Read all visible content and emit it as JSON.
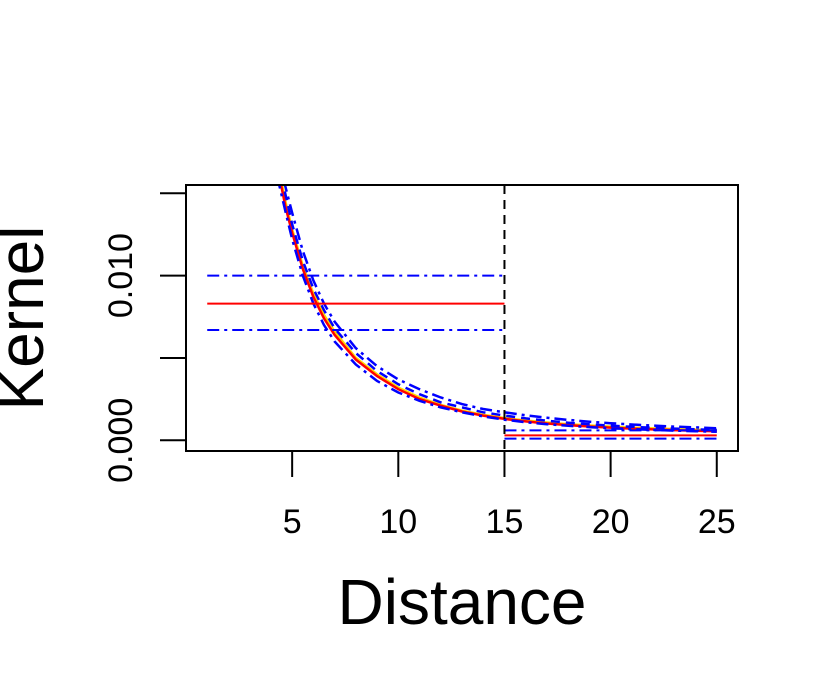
{
  "chart_data": {
    "type": "line",
    "xlabel": "Distance",
    "ylabel": "Kernel",
    "xlim": [
      0,
      26
    ],
    "ylim": [
      -0.00065,
      0.0155
    ],
    "x_ticks": [
      5,
      10,
      15,
      20,
      25
    ],
    "x_tick_labels": [
      "5",
      "10",
      "15",
      "20",
      "25"
    ],
    "y_ticks": [
      0.0,
      0.005,
      0.01,
      0.015
    ],
    "y_tick_labels": [
      "0.000",
      "",
      "0.010",
      ""
    ],
    "vertical_line": {
      "x": 15,
      "style": "dashed",
      "color": "#000000"
    },
    "series": [
      {
        "role": "estimate-curve",
        "color": "#ffd700",
        "style": "solid",
        "x": [
          4.4,
          4.7,
          5,
          5.5,
          6,
          6.5,
          7,
          8,
          9,
          10,
          11,
          12,
          13,
          14,
          15,
          16,
          17,
          18,
          19,
          20,
          21,
          22,
          23,
          24,
          25
        ],
        "y": [
          0.0163,
          0.0144,
          0.0128,
          0.0106,
          0.0089,
          0.0076,
          0.0066,
          0.005,
          0.004,
          0.0032,
          0.0026,
          0.00215,
          0.0018,
          0.00155,
          0.00135,
          0.0012,
          0.00108,
          0.00098,
          0.0009,
          0.00083,
          0.00077,
          0.00072,
          0.00068,
          0.00064,
          0.0006
        ]
      },
      {
        "role": "estimate-curve",
        "color": "#ff0000",
        "style": "solid",
        "x": [
          4.4,
          4.7,
          5,
          5.5,
          6,
          6.5,
          7,
          8,
          9,
          10,
          11,
          12,
          13,
          14,
          15,
          16,
          17,
          18,
          19,
          20,
          21,
          22,
          23,
          24,
          25
        ],
        "y": [
          0.016,
          0.0141,
          0.0126,
          0.0104,
          0.0087,
          0.0074,
          0.0064,
          0.0049,
          0.0039,
          0.0031,
          0.0025,
          0.0021,
          0.00175,
          0.0015,
          0.0013,
          0.00115,
          0.00102,
          0.00092,
          0.00084,
          0.00077,
          0.00071,
          0.00066,
          0.00062,
          0.00058,
          0.00055
        ]
      },
      {
        "role": "upper-band",
        "color": "#0000ff",
        "style": "dashdot",
        "x": [
          4.6,
          5,
          5.5,
          6,
          6.5,
          7,
          8,
          9,
          10,
          11,
          12,
          13,
          14,
          15,
          16,
          17,
          18,
          19,
          20,
          21,
          22,
          23,
          24,
          25
        ],
        "y": [
          0.0158,
          0.0138,
          0.0115,
          0.0097,
          0.0083,
          0.0072,
          0.0056,
          0.0045,
          0.0037,
          0.0031,
          0.0026,
          0.0022,
          0.0019,
          0.0017,
          0.00152,
          0.00137,
          0.00124,
          0.00113,
          0.00104,
          0.00096,
          0.00089,
          0.00083,
          0.00078,
          0.00073
        ]
      },
      {
        "role": "lower-band",
        "color": "#0000ff",
        "style": "dashdot",
        "x": [
          4.3,
          4.7,
          5,
          5.5,
          6,
          6.5,
          7,
          8,
          9,
          10,
          11,
          12,
          13,
          14,
          15,
          16,
          17,
          18,
          19,
          20,
          21,
          22,
          23,
          24,
          25
        ],
        "y": [
          0.016,
          0.0138,
          0.0122,
          0.01,
          0.0083,
          0.007,
          0.006,
          0.0046,
          0.0036,
          0.0029,
          0.0024,
          0.002,
          0.0017,
          0.00145,
          0.00125,
          0.0011,
          0.00098,
          0.00088,
          0.0008,
          0.00073,
          0.00068,
          0.00063,
          0.00059,
          0.00055,
          0.00052
        ]
      },
      {
        "role": "upper-band-2",
        "color": "#0000ff",
        "style": "dashed",
        "x": [
          4.5,
          5,
          5.5,
          6,
          6.5,
          7,
          8,
          9,
          10,
          11,
          12,
          13,
          14,
          15,
          16,
          17,
          18,
          19,
          20,
          21,
          22,
          23,
          24,
          25
        ],
        "y": [
          0.016,
          0.0131,
          0.0109,
          0.0092,
          0.0079,
          0.0068,
          0.0053,
          0.0042,
          0.0034,
          0.0028,
          0.0023,
          0.002,
          0.0017,
          0.0015,
          0.00133,
          0.00119,
          0.00107,
          0.00097,
          0.00089,
          0.00082,
          0.00076,
          0.00071,
          0.00067,
          0.00063
        ]
      }
    ],
    "segments": [
      {
        "role": "step-estimate",
        "color": "#ff0000",
        "style": "solid",
        "x": [
          1,
          15
        ],
        "y": 0.0083
      },
      {
        "role": "step-upper",
        "color": "#0000ff",
        "style": "dashdot",
        "x": [
          1,
          15
        ],
        "y": 0.01
      },
      {
        "role": "step-lower",
        "color": "#0000ff",
        "style": "dashdot",
        "x": [
          1,
          15
        ],
        "y": 0.0067
      },
      {
        "role": "tail-estimate",
        "color": "#ff0000",
        "style": "solid",
        "x": [
          15,
          25
        ],
        "y": 0.0003
      },
      {
        "role": "tail-upper",
        "color": "#0000ff",
        "style": "dashdot",
        "x": [
          15,
          25
        ],
        "y": 0.0006
      },
      {
        "role": "tail-lower",
        "color": "#0000ff",
        "style": "dashdot",
        "x": [
          15,
          25
        ],
        "y": 0.0001
      }
    ]
  }
}
